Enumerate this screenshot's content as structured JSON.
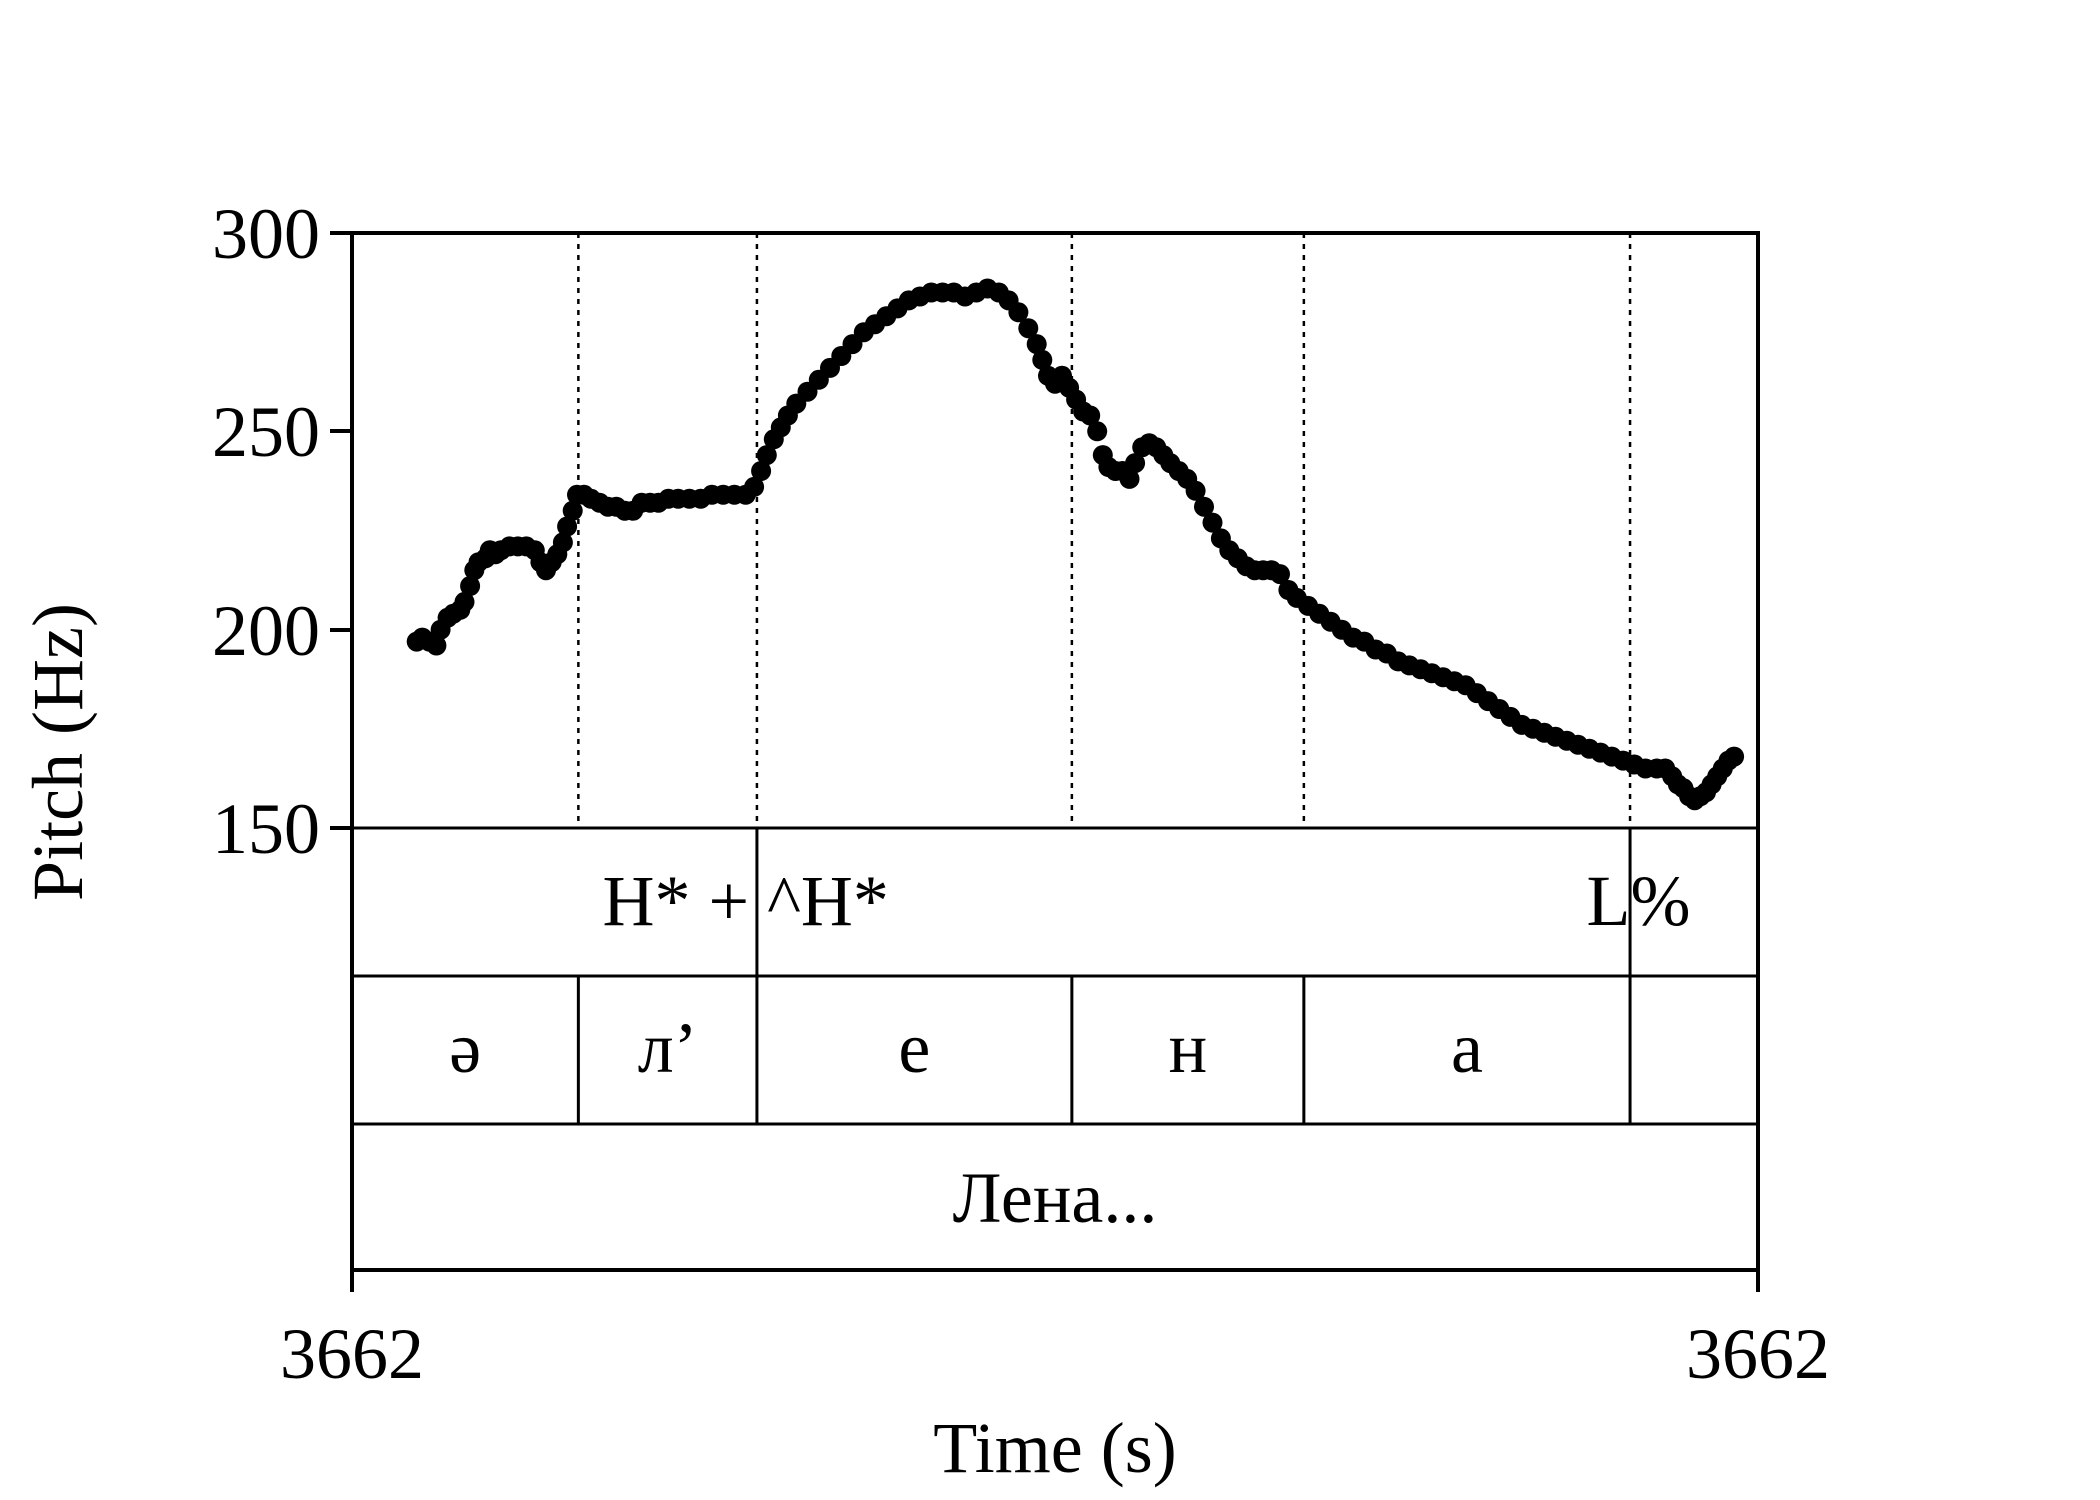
{
  "chart_data": {
    "type": "scatter",
    "ylabel": "Pitch (Hz)",
    "xlabel": "Time (s)",
    "ylim": [
      150,
      300
    ],
    "yticks": [
      "300",
      "250",
      "200",
      "150"
    ],
    "xtick_labels": [
      "3662",
      "3662"
    ],
    "xlim": [
      0,
      1
    ],
    "series": [
      {
        "color": "#000000",
        "points": [
          [
            0.046,
            197
          ],
          [
            0.05,
            198
          ],
          [
            0.055,
            197
          ],
          [
            0.06,
            196
          ],
          [
            0.063,
            200
          ],
          [
            0.068,
            203
          ],
          [
            0.072,
            204
          ],
          [
            0.077,
            205
          ],
          [
            0.08,
            207
          ],
          [
            0.084,
            211
          ],
          [
            0.087,
            215
          ],
          [
            0.09,
            217
          ],
          [
            0.095,
            218
          ],
          [
            0.098,
            220
          ],
          [
            0.102,
            219
          ],
          [
            0.106,
            220
          ],
          [
            0.112,
            221
          ],
          [
            0.118,
            221
          ],
          [
            0.124,
            221
          ],
          [
            0.13,
            220
          ],
          [
            0.134,
            217
          ],
          [
            0.138,
            215
          ],
          [
            0.142,
            217
          ],
          [
            0.146,
            219
          ],
          [
            0.15,
            222
          ],
          [
            0.153,
            226
          ],
          [
            0.157,
            230
          ],
          [
            0.16,
            234
          ],
          [
            0.165,
            234
          ],
          [
            0.17,
            233
          ],
          [
            0.176,
            232
          ],
          [
            0.182,
            231
          ],
          [
            0.188,
            231
          ],
          [
            0.194,
            230
          ],
          [
            0.2,
            230
          ],
          [
            0.206,
            232
          ],
          [
            0.212,
            232
          ],
          [
            0.218,
            232
          ],
          [
            0.225,
            233
          ],
          [
            0.232,
            233
          ],
          [
            0.24,
            233
          ],
          [
            0.248,
            233
          ],
          [
            0.256,
            234
          ],
          [
            0.264,
            234
          ],
          [
            0.272,
            234
          ],
          [
            0.28,
            234
          ],
          [
            0.286,
            236
          ],
          [
            0.291,
            240
          ],
          [
            0.295,
            244
          ],
          [
            0.3,
            248
          ],
          [
            0.305,
            251
          ],
          [
            0.31,
            254
          ],
          [
            0.316,
            257
          ],
          [
            0.324,
            260
          ],
          [
            0.332,
            263
          ],
          [
            0.34,
            266
          ],
          [
            0.348,
            269
          ],
          [
            0.356,
            272
          ],
          [
            0.364,
            275
          ],
          [
            0.372,
            277
          ],
          [
            0.38,
            279
          ],
          [
            0.388,
            281
          ],
          [
            0.396,
            283
          ],
          [
            0.404,
            284
          ],
          [
            0.412,
            285
          ],
          [
            0.42,
            285
          ],
          [
            0.428,
            285
          ],
          [
            0.436,
            284
          ],
          [
            0.444,
            285
          ],
          [
            0.452,
            286
          ],
          [
            0.46,
            285
          ],
          [
            0.467,
            283
          ],
          [
            0.474,
            280
          ],
          [
            0.481,
            276
          ],
          [
            0.487,
            272
          ],
          [
            0.491,
            268
          ],
          [
            0.495,
            264
          ],
          [
            0.5,
            262
          ],
          [
            0.505,
            264
          ],
          [
            0.51,
            261
          ],
          [
            0.515,
            258
          ],
          [
            0.52,
            255
          ],
          [
            0.525,
            254
          ],
          [
            0.53,
            250
          ],
          [
            0.534,
            244
          ],
          [
            0.538,
            241
          ],
          [
            0.543,
            240
          ],
          [
            0.548,
            240
          ],
          [
            0.553,
            238
          ],
          [
            0.557,
            242
          ],
          [
            0.562,
            246
          ],
          [
            0.567,
            247
          ],
          [
            0.572,
            246
          ],
          [
            0.577,
            244
          ],
          [
            0.582,
            242
          ],
          [
            0.588,
            240
          ],
          [
            0.594,
            238
          ],
          [
            0.6,
            235
          ],
          [
            0.606,
            231
          ],
          [
            0.612,
            227
          ],
          [
            0.618,
            223
          ],
          [
            0.624,
            220
          ],
          [
            0.63,
            218
          ],
          [
            0.636,
            216
          ],
          [
            0.642,
            215
          ],
          [
            0.648,
            215
          ],
          [
            0.654,
            215
          ],
          [
            0.66,
            214
          ],
          [
            0.666,
            210
          ],
          [
            0.672,
            208
          ],
          [
            0.68,
            206
          ],
          [
            0.688,
            204
          ],
          [
            0.696,
            202
          ],
          [
            0.704,
            200
          ],
          [
            0.712,
            198
          ],
          [
            0.72,
            197
          ],
          [
            0.728,
            195
          ],
          [
            0.736,
            194
          ],
          [
            0.744,
            192
          ],
          [
            0.752,
            191
          ],
          [
            0.76,
            190
          ],
          [
            0.768,
            189
          ],
          [
            0.776,
            188
          ],
          [
            0.784,
            187
          ],
          [
            0.792,
            186
          ],
          [
            0.8,
            184
          ],
          [
            0.808,
            182
          ],
          [
            0.816,
            180
          ],
          [
            0.824,
            178
          ],
          [
            0.832,
            176
          ],
          [
            0.84,
            175
          ],
          [
            0.848,
            174
          ],
          [
            0.856,
            173
          ],
          [
            0.864,
            172
          ],
          [
            0.872,
            171
          ],
          [
            0.88,
            170
          ],
          [
            0.888,
            169
          ],
          [
            0.896,
            168
          ],
          [
            0.904,
            167
          ],
          [
            0.912,
            166
          ],
          [
            0.92,
            165
          ],
          [
            0.928,
            165
          ],
          [
            0.934,
            165
          ],
          [
            0.939,
            163
          ],
          [
            0.943,
            161
          ],
          [
            0.947,
            160
          ],
          [
            0.951,
            158
          ],
          [
            0.955,
            157
          ],
          [
            0.959,
            158
          ],
          [
            0.963,
            159
          ],
          [
            0.967,
            161
          ],
          [
            0.971,
            163
          ],
          [
            0.975,
            165
          ],
          [
            0.979,
            167
          ],
          [
            0.983,
            168
          ]
        ]
      }
    ]
  },
  "annotation_tiers": {
    "tones": {
      "labels": [
        {
          "text": "H* + ^H*",
          "at": 0.28
        },
        {
          "text": "L%",
          "at": 0.915
        }
      ]
    },
    "phonemes": {
      "boundaries": [
        0,
        0.161,
        0.288,
        0.512,
        0.677,
        0.909,
        1
      ],
      "labels": [
        "ə",
        "л’",
        "е",
        "н",
        "а",
        ""
      ]
    },
    "words": {
      "boundaries": [
        0,
        1
      ],
      "labels": [
        "Лена..."
      ]
    }
  }
}
